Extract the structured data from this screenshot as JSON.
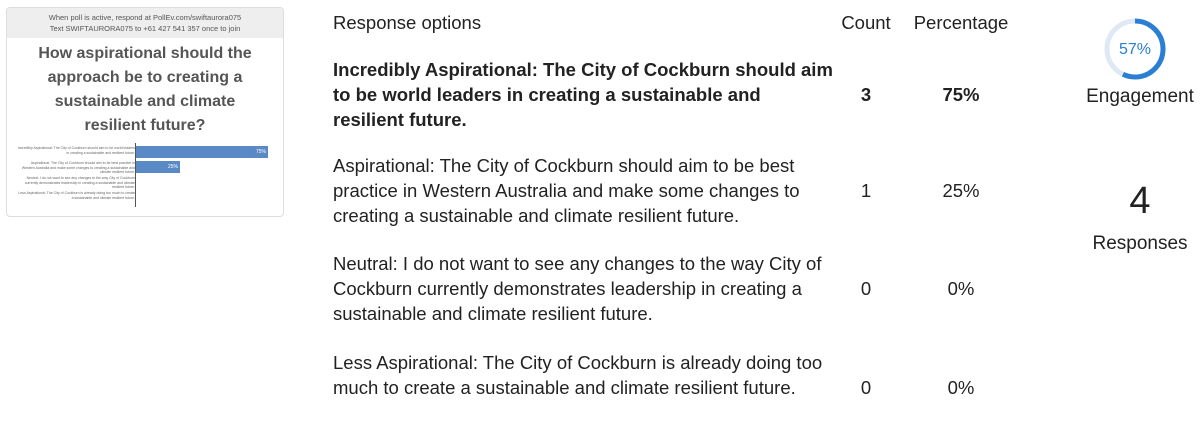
{
  "thumbnail": {
    "instructions": [
      "When poll is active, respond at PollEv.com/swiftaurora075",
      "Text SWIFTAURORA075 to +61 427 541 357 once to join"
    ],
    "title": "How aspirational should the approach be to creating a sustainable and climate resilient future?"
  },
  "table": {
    "headers": [
      "Response options",
      "Count",
      "Percentage"
    ],
    "rows": [
      {
        "option": "Incredibly Aspirational: The City of Cockburn should aim to be world leaders in creating a sustainable and resilient future.",
        "count": 3,
        "percentage": 75,
        "percentage_label": "75%"
      },
      {
        "option": "Aspirational: The City of Cockburn should aim to be best practice in Western Australia and make some changes to creating a sustainable and climate resilient future.",
        "count": 1,
        "percentage": 25,
        "percentage_label": "25%"
      },
      {
        "option": "Neutral: I do not want to see any changes to the way City of Cockburn currently demonstrates leadership in creating a sustainable and climate resilient future.",
        "count": 0,
        "percentage": 0,
        "percentage_label": "0%"
      },
      {
        "option": "Less Aspirational: The City of Cockburn is already doing too much to create a sustainable and climate resilient future.",
        "count": 0,
        "percentage": 0,
        "percentage_label": "0%"
      }
    ]
  },
  "engagement": {
    "value": 57,
    "label": "57%",
    "caption": "Engagement"
  },
  "responses": {
    "count": 4,
    "caption": "Responses"
  }
}
